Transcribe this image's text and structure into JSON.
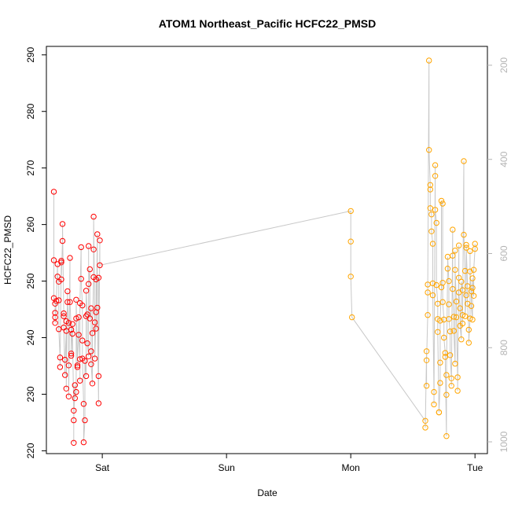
{
  "chart_data": {
    "type": "scatter",
    "title": "ATOM1 Northeast_Pacific HCFC22_PMSD",
    "xlabel": "Date",
    "ylabel": "HCFC22_PMSD",
    "x_ticks": [
      "Sat",
      "Sun",
      "Mon",
      "Tue"
    ],
    "x_range_days": [
      -0.45,
      3.1
    ],
    "ylim": [
      219.5,
      291.5
    ],
    "y_ticks": [
      220,
      230,
      240,
      250,
      260,
      270,
      280,
      290
    ],
    "y2_ticks": [
      200,
      400,
      600,
      800,
      1000
    ],
    "y2_range": [
      1025,
      160
    ],
    "grid": false,
    "colors": {
      "series1": "#ff0000",
      "series2": "#ffa500",
      "line": "#c8c8c8"
    },
    "series": [
      {
        "x": [
          -0.39,
          -0.39,
          -0.39,
          -0.38,
          -0.38,
          -0.38,
          -0.38,
          -0.37,
          -0.36,
          -0.36,
          -0.35,
          -0.35,
          -0.35,
          -0.34,
          -0.34,
          -0.33,
          -0.33,
          -0.33,
          -0.32,
          -0.32,
          -0.31,
          -0.31,
          -0.31,
          -0.3,
          -0.3,
          -0.29,
          -0.29,
          -0.29,
          -0.28,
          -0.28,
          -0.27,
          -0.27,
          -0.27,
          -0.26,
          -0.26,
          -0.25,
          -0.25,
          -0.25,
          -0.24,
          -0.24,
          -0.23,
          -0.23,
          -0.23,
          -0.22,
          -0.22,
          -0.21,
          -0.21,
          -0.21,
          -0.2,
          -0.2,
          -0.19,
          -0.19,
          -0.18,
          -0.18,
          -0.18,
          -0.17,
          -0.17,
          -0.16,
          -0.16,
          -0.16,
          -0.15,
          -0.15,
          -0.14,
          -0.14,
          -0.13,
          -0.13,
          -0.13,
          -0.12,
          -0.12,
          -0.11,
          -0.11,
          -0.11,
          -0.1,
          -0.1,
          -0.09,
          -0.09,
          -0.09,
          -0.08,
          -0.08,
          -0.07,
          -0.07,
          -0.07,
          -0.06,
          -0.06,
          -0.05,
          -0.05,
          -0.05,
          -0.04,
          -0.04,
          -0.03,
          -0.03,
          -0.03,
          -0.02,
          -0.02
        ],
        "y": [
          265.8,
          253.7,
          247.0,
          246.0,
          244.4,
          243.6,
          242.6,
          246.5,
          253.0,
          250.8,
          249.9,
          246.6,
          241.5,
          236.5,
          234.8,
          253.6,
          253.3,
          250.3,
          257.1,
          260.1,
          244.3,
          243.8,
          241.8,
          233.4,
          236.1,
          241.2,
          242.9,
          231.0,
          248.2,
          246.3,
          242.6,
          235.1,
          229.6,
          254.1,
          246.3,
          241.4,
          237.2,
          236.8,
          242.4,
          240.7,
          227.1,
          221.4,
          225.4,
          231.6,
          229.3,
          230.4,
          243.4,
          246.7,
          234.8,
          235.1,
          243.6,
          240.5,
          236.2,
          232.4,
          246.1,
          256.0,
          250.4,
          245.7,
          239.5,
          236.3,
          228.3,
          221.5,
          225.4,
          235.9,
          233.2,
          243.8,
          248.3,
          244.1,
          239.0,
          236.7,
          256.2,
          249.5,
          252.1,
          243.4,
          245.2,
          237.6,
          235.3,
          231.9,
          240.8,
          250.7,
          255.6,
          261.4,
          242.7,
          236.3,
          244.5,
          250.3,
          241.6,
          258.3,
          245.3,
          228.4,
          250.6,
          233.2,
          257.2,
          252.8
        ]
      },
      {
        "x": [
          2.0,
          2.0,
          2.0,
          2.01,
          2.6,
          2.6,
          2.61,
          2.61,
          2.61,
          2.62,
          2.62,
          2.62,
          2.63,
          2.63,
          2.64,
          2.64,
          2.64,
          2.65,
          2.65,
          2.66,
          2.66,
          2.66,
          2.67,
          2.67,
          2.68,
          2.68,
          2.68,
          2.69,
          2.69,
          2.7,
          2.7,
          2.7,
          2.71,
          2.71,
          2.72,
          2.72,
          2.72,
          2.73,
          2.73,
          2.74,
          2.74,
          2.74,
          2.75,
          2.75,
          2.76,
          2.76,
          2.77,
          2.77,
          2.77,
          2.78,
          2.78,
          2.79,
          2.79,
          2.79,
          2.8,
          2.8,
          2.81,
          2.81,
          2.82,
          2.82,
          2.82,
          2.83,
          2.83,
          2.84,
          2.84,
          2.84,
          2.85,
          2.85,
          2.86,
          2.86,
          2.87,
          2.87,
          2.87,
          2.88,
          2.88,
          2.89,
          2.89,
          2.9,
          2.9,
          2.9,
          2.91,
          2.91,
          2.92,
          2.92,
          2.93,
          2.93,
          2.93,
          2.94,
          2.94,
          2.95,
          2.95,
          2.96,
          2.96,
          2.96,
          2.97,
          2.97,
          2.98,
          2.98,
          2.98,
          2.99,
          2.99,
          3.0,
          3.0
        ],
        "y": [
          262.4,
          257.0,
          250.8,
          243.6,
          225.3,
          224.1,
          237.6,
          231.5,
          236.0,
          244.0,
          248.0,
          249.4,
          289.0,
          273.2,
          267.0,
          266.2,
          262.9,
          261.8,
          258.8,
          256.6,
          249.6,
          247.5,
          230.4,
          228.2,
          270.5,
          268.6,
          262.6,
          260.3,
          249.3,
          246.0,
          243.3,
          241.0,
          226.8,
          226.8,
          232.0,
          235.6,
          243.0,
          248.9,
          264.2,
          263.7,
          249.7,
          246.3,
          243.2,
          240.0,
          237.3,
          236.6,
          222.6,
          229.9,
          233.4,
          252.2,
          254.3,
          250.0,
          245.9,
          243.3,
          241.1,
          236.9,
          232.8,
          231.5,
          259.1,
          254.5,
          248.6,
          243.7,
          241.2,
          235.4,
          255.4,
          252.0,
          246.4,
          243.6,
          233.0,
          230.6,
          256.3,
          250.6,
          248.0,
          245.2,
          242.1,
          239.7,
          249.9,
          248.4,
          244.0,
          242.5,
          271.2,
          258.2,
          251.8,
          243.8,
          247.5,
          256.4,
          255.9,
          249.1,
          246.0,
          241.4,
          239.1,
          243.4,
          255.3,
          251.7,
          248.2,
          245.6,
          243.2,
          248.8,
          250.5,
          247.4,
          252.0,
          255.7,
          256.6
        ]
      }
    ]
  }
}
